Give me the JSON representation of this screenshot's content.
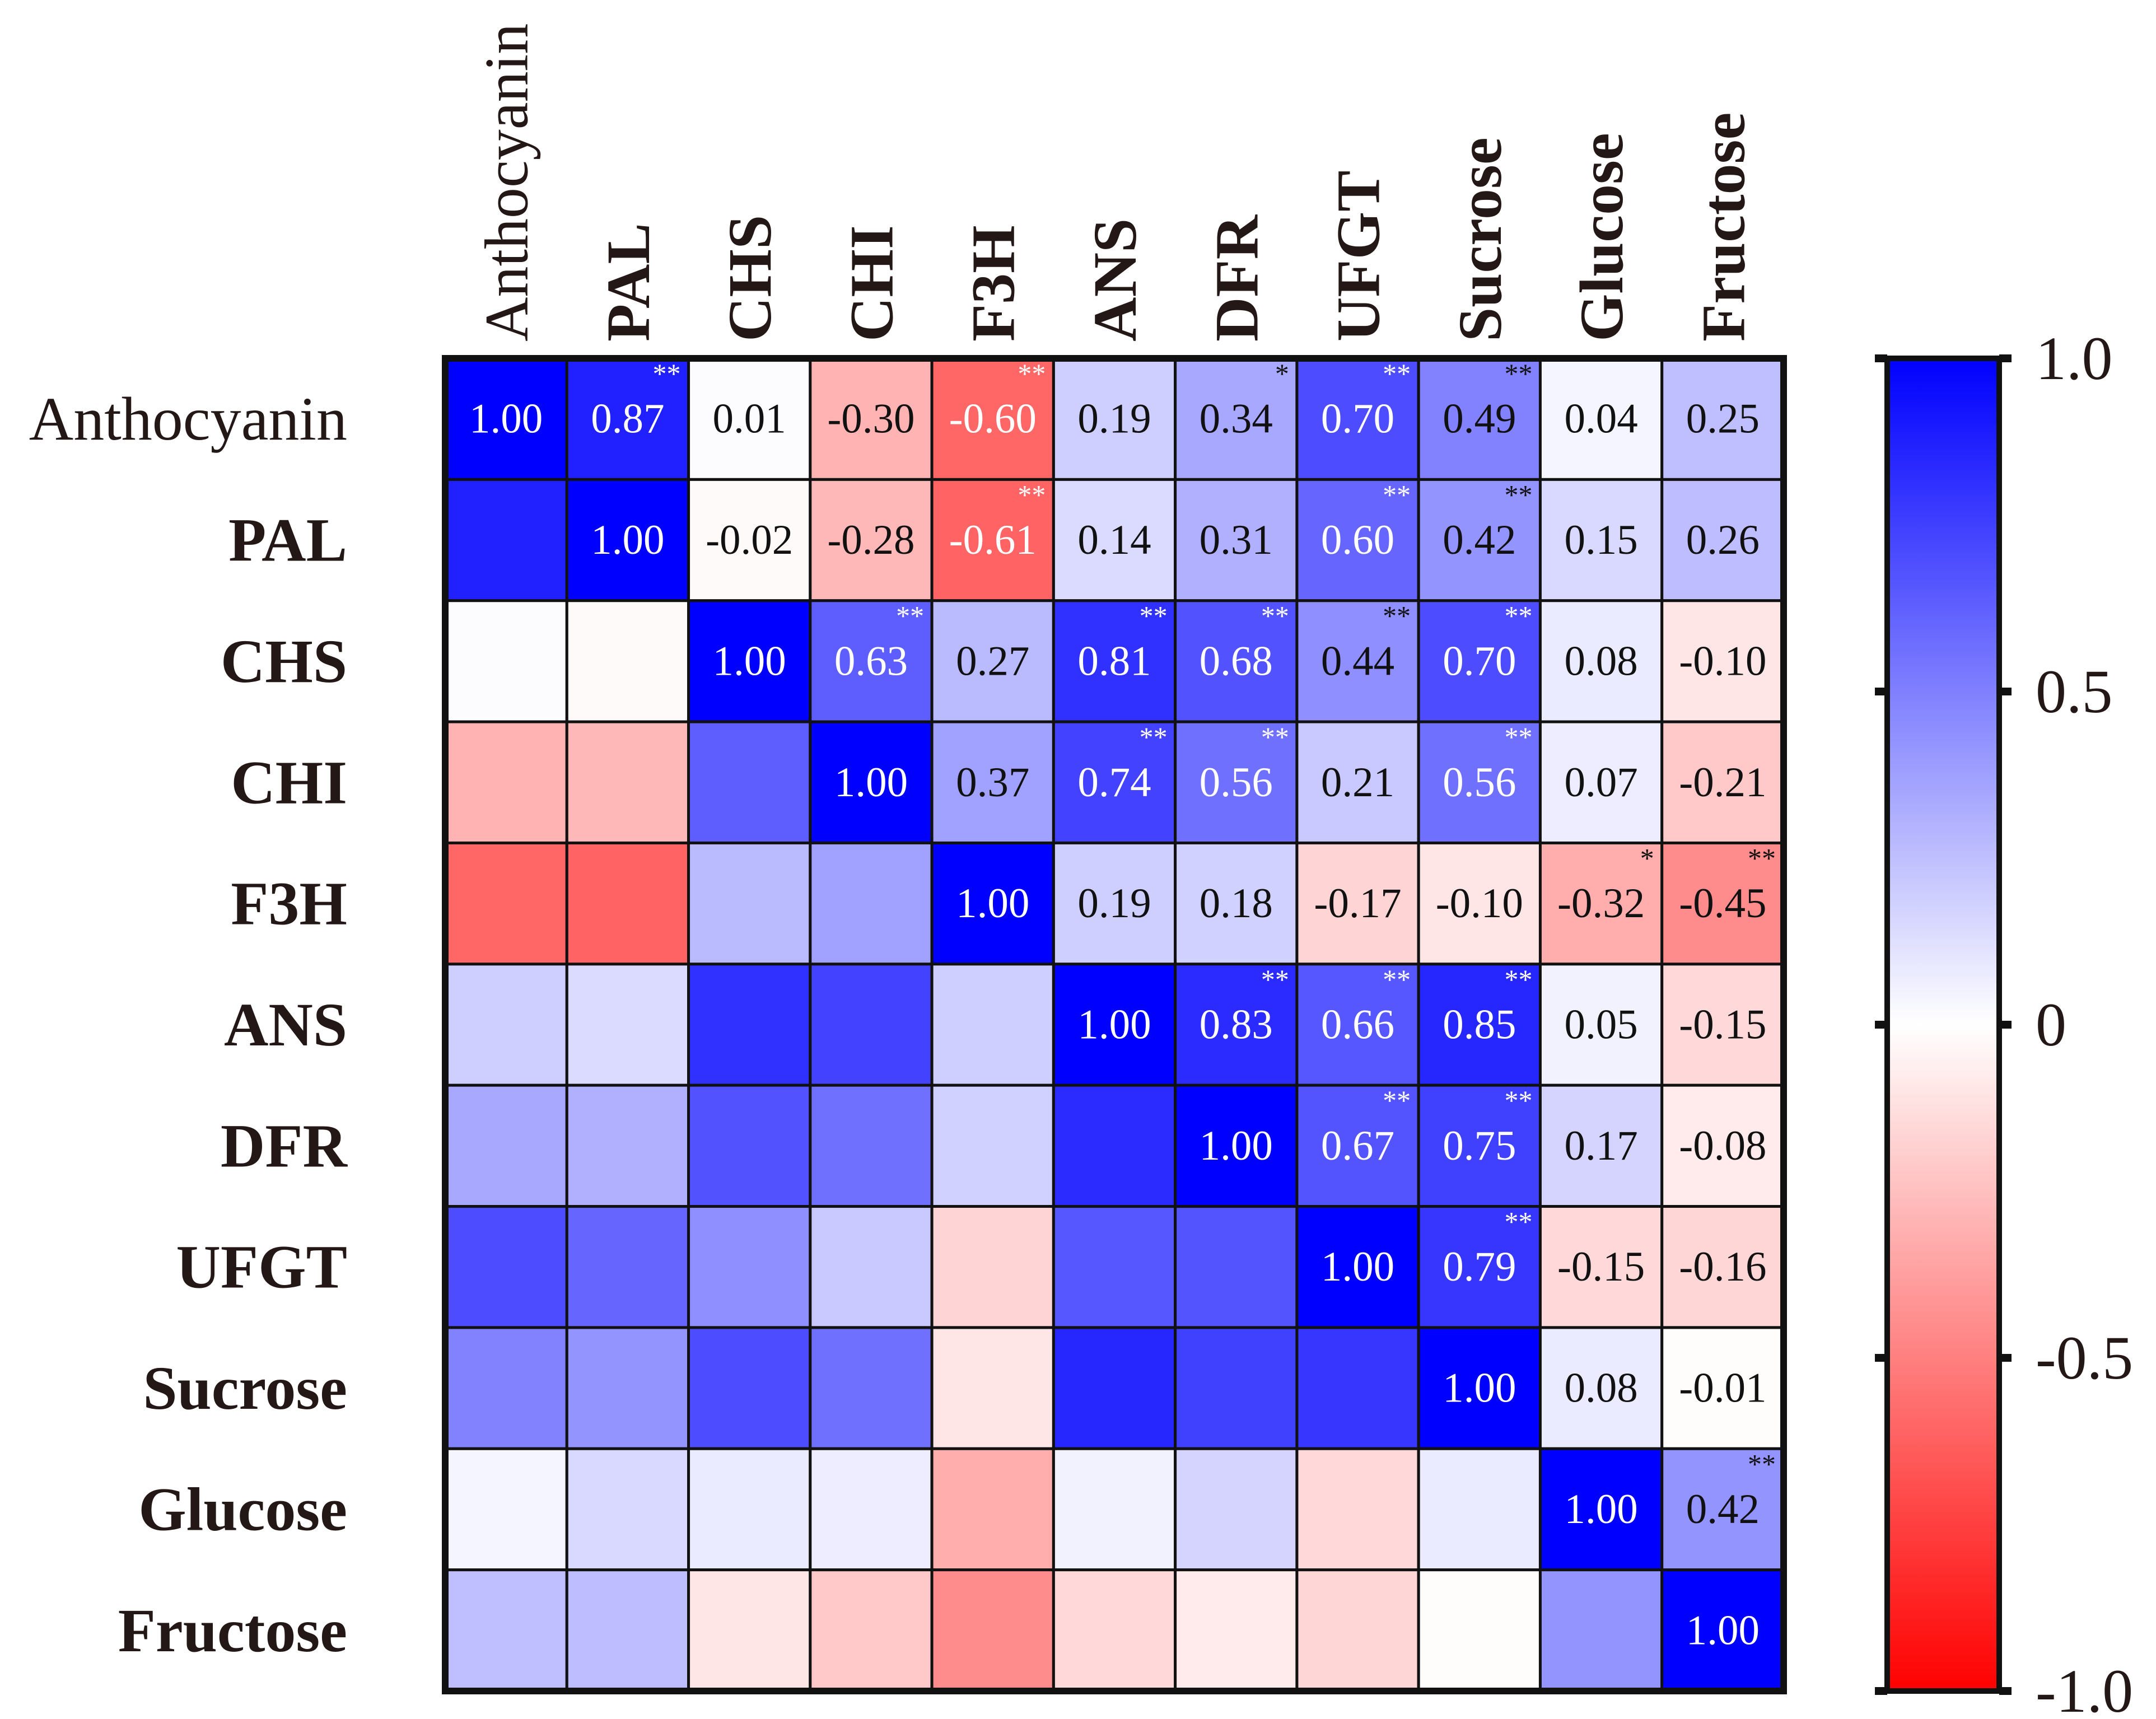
{
  "chart_data": {
    "type": "heatmap",
    "title": "",
    "labels": [
      "Anthocyanin",
      "PAL",
      "CHS",
      "CHI",
      "F3H",
      "ANS",
      "DFR",
      "UFGT",
      "Sucrose",
      "Glucose",
      "Fructose"
    ],
    "bold_labels": [
      false,
      true,
      true,
      true,
      true,
      true,
      true,
      true,
      true,
      true,
      true
    ],
    "values": [
      [
        1.0,
        0.87,
        0.01,
        -0.3,
        -0.6,
        0.19,
        0.34,
        0.7,
        0.49,
        0.04,
        0.25
      ],
      [
        0.87,
        1.0,
        -0.02,
        -0.28,
        -0.61,
        0.14,
        0.31,
        0.6,
        0.42,
        0.15,
        0.26
      ],
      [
        0.01,
        -0.02,
        1.0,
        0.63,
        0.27,
        0.81,
        0.68,
        0.44,
        0.7,
        0.08,
        -0.1
      ],
      [
        -0.3,
        -0.28,
        0.63,
        1.0,
        0.37,
        0.74,
        0.56,
        0.21,
        0.56,
        0.07,
        -0.21
      ],
      [
        -0.6,
        -0.61,
        0.27,
        0.37,
        1.0,
        0.19,
        0.18,
        -0.17,
        -0.1,
        -0.32,
        -0.45
      ],
      [
        0.19,
        0.14,
        0.81,
        0.74,
        0.19,
        1.0,
        0.83,
        0.66,
        0.85,
        0.05,
        -0.15
      ],
      [
        0.34,
        0.31,
        0.68,
        0.56,
        0.18,
        0.83,
        1.0,
        0.67,
        0.75,
        0.17,
        -0.08
      ],
      [
        0.7,
        0.6,
        0.44,
        0.21,
        -0.17,
        0.66,
        0.67,
        1.0,
        0.79,
        -0.15,
        -0.16
      ],
      [
        0.49,
        0.42,
        0.7,
        0.56,
        -0.1,
        0.85,
        0.75,
        0.79,
        1.0,
        0.08,
        -0.01
      ],
      [
        0.04,
        0.15,
        0.08,
        0.07,
        -0.32,
        0.05,
        0.17,
        -0.15,
        0.08,
        1.0,
        0.42
      ],
      [
        0.25,
        0.26,
        -0.1,
        -0.21,
        -0.45,
        -0.15,
        -0.08,
        -0.16,
        -0.01,
        0.42,
        1.0
      ]
    ],
    "display_texts": [
      [
        "1.00",
        "0.87",
        "0.01",
        "-0.30",
        "-0.60",
        "0.19",
        "0.34",
        "0.70",
        "0.49",
        "0.04",
        "0.25"
      ],
      [
        "",
        "1.00",
        "-0.02",
        "-0.28",
        "-0.61",
        "0.14",
        "0.31",
        "0.60",
        "0.42",
        "0.15",
        "0.26"
      ],
      [
        "",
        "",
        "1.00",
        "0.63",
        "0.27",
        "0.81",
        "0.68",
        "0.44",
        "0.70",
        "0.08",
        "-0.10"
      ],
      [
        "",
        "",
        "",
        "1.00",
        "0.37",
        "0.74",
        "0.56",
        "0.21",
        "0.56",
        "0.07",
        "-0.21"
      ],
      [
        "",
        "",
        "",
        "",
        "1.00",
        "0.19",
        "0.18",
        "-0.17",
        "-0.10",
        "-0.32",
        "-0.45"
      ],
      [
        "",
        "",
        "",
        "",
        "",
        "1.00",
        "0.83",
        "0.66",
        "0.85",
        "0.05",
        "-0.15"
      ],
      [
        "",
        "",
        "",
        "",
        "",
        "",
        "1.00",
        "0.67",
        "0.75",
        "0.17",
        "-0.08"
      ],
      [
        "",
        "",
        "",
        "",
        "",
        "",
        "",
        "1.00",
        "0.79",
        "-0.15",
        "-0.16"
      ],
      [
        "",
        "",
        "",
        "",
        "",
        "",
        "",
        "",
        "1.00",
        "0.08",
        "-0.01"
      ],
      [
        "",
        "",
        "",
        "",
        "",
        "",
        "",
        "",
        "",
        "1.00",
        "0.42"
      ],
      [
        "",
        "",
        "",
        "",
        "",
        "",
        "",
        "",
        "",
        "",
        "1.00"
      ]
    ],
    "significance": [
      [
        "",
        "**",
        "",
        "",
        "**",
        "",
        "*",
        "**",
        "**",
        "",
        ""
      ],
      [
        "",
        "",
        "",
        "",
        "**",
        "",
        "",
        "**",
        "**",
        "",
        ""
      ],
      [
        "",
        "",
        "",
        "**",
        "",
        "**",
        "**",
        "**",
        "**",
        "",
        ""
      ],
      [
        "",
        "",
        "",
        "",
        "",
        "**",
        "**",
        "",
        "**",
        "",
        ""
      ],
      [
        "",
        "",
        "",
        "",
        "",
        "",
        "",
        "",
        "",
        "*",
        "**"
      ],
      [
        "",
        "",
        "",
        "",
        "",
        "",
        "**",
        "**",
        "**",
        "",
        ""
      ],
      [
        "",
        "",
        "",
        "",
        "",
        "",
        "",
        "**",
        "**",
        "",
        ""
      ],
      [
        "",
        "",
        "",
        "",
        "",
        "",
        "",
        "",
        "**",
        "",
        ""
      ],
      [
        "",
        "",
        "",
        "",
        "",
        "",
        "",
        "",
        "",
        "",
        ""
      ],
      [
        "",
        "",
        "",
        "",
        "",
        "",
        "",
        "",
        "",
        "",
        "**"
      ],
      [
        "",
        "",
        "",
        "",
        "",
        "",
        "",
        "",
        "",
        "",
        ""
      ]
    ],
    "colorbar": {
      "min": -1.0,
      "max": 1.0,
      "ticks": [
        1.0,
        0.5,
        0,
        -0.5,
        -1.0
      ],
      "tick_labels": [
        "1.0",
        "0.5",
        "0",
        "-0.5",
        "-1.0"
      ],
      "positive_color": "#0000ff",
      "negative_color": "#ff0000",
      "neutral_color": "#ffffff"
    }
  }
}
